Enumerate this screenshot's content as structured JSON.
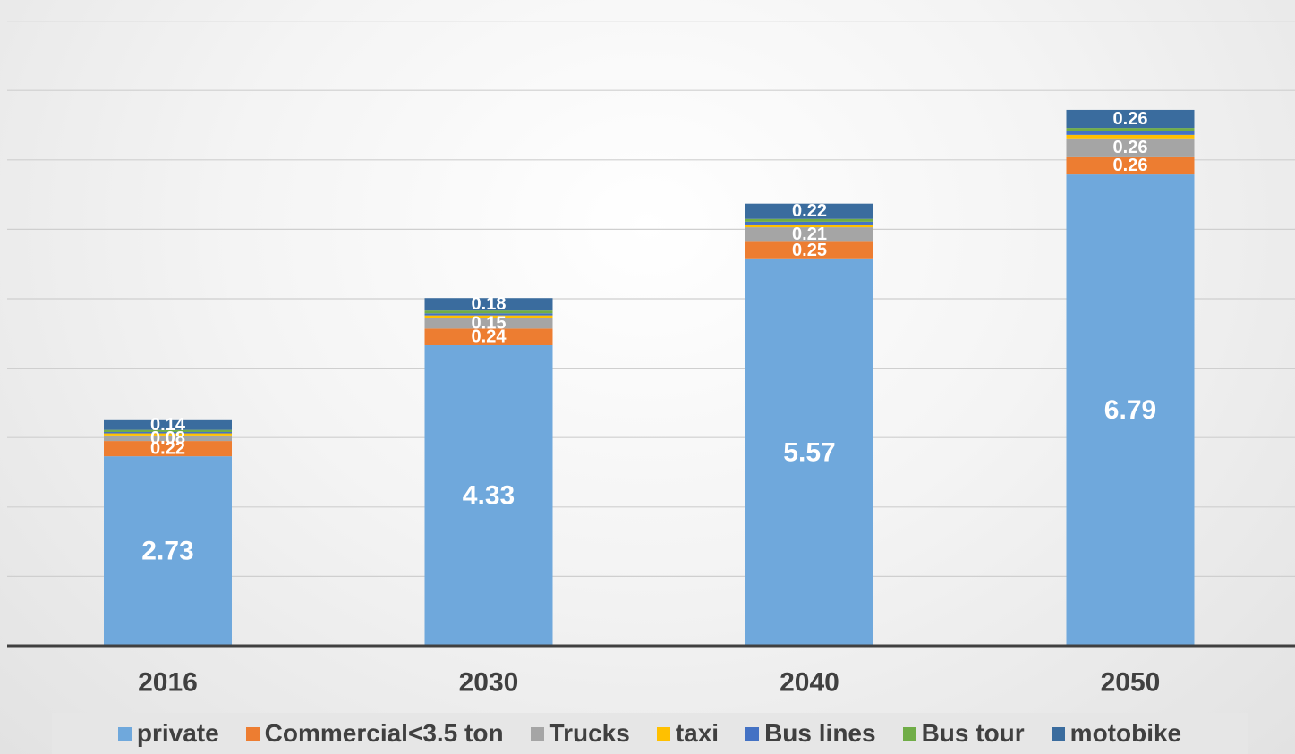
{
  "chart_data": {
    "type": "bar",
    "stacked": true,
    "categories": [
      "2016",
      "2030",
      "2040",
      "2050"
    ],
    "series": [
      {
        "name": "private",
        "color": "#6fa8dc",
        "values": [
          2.73,
          4.33,
          5.57,
          6.79
        ],
        "labels": [
          "2.73",
          "4.33",
          "5.57",
          "6.79"
        ]
      },
      {
        "name": "Commercial<3.5 ton",
        "color": "#ed7d31",
        "values": [
          0.22,
          0.24,
          0.25,
          0.26
        ],
        "labels": [
          "0.22",
          "0.24",
          "0.25",
          "0.26"
        ]
      },
      {
        "name": "Trucks",
        "color": "#a5a5a5",
        "values": [
          0.08,
          0.15,
          0.21,
          0.26
        ],
        "labels": [
          "0.08",
          "0.15",
          "0.21",
          "0.26"
        ]
      },
      {
        "name": "taxi",
        "color": "#ffc000",
        "values": [
          0.03,
          0.04,
          0.04,
          0.05
        ],
        "labels": [
          "",
          "",
          "",
          ""
        ]
      },
      {
        "name": "Bus lines",
        "color": "#4472c4",
        "values": [
          0.02,
          0.03,
          0.04,
          0.05
        ],
        "labels": [
          "",
          "",
          "",
          ""
        ]
      },
      {
        "name": "Bus tour",
        "color": "#70ad47",
        "values": [
          0.03,
          0.04,
          0.04,
          0.05
        ],
        "labels": [
          "",
          "",
          "",
          ""
        ]
      },
      {
        "name": "motobike",
        "color": "#3a6c9e",
        "values": [
          0.14,
          0.18,
          0.22,
          0.26
        ],
        "labels": [
          "0.14",
          "0.18",
          "0.22",
          "0.26"
        ]
      }
    ],
    "ylim": [
      0,
      9
    ],
    "grid": true,
    "legend": "bottom",
    "title": "",
    "xlabel": "",
    "ylabel": ""
  }
}
